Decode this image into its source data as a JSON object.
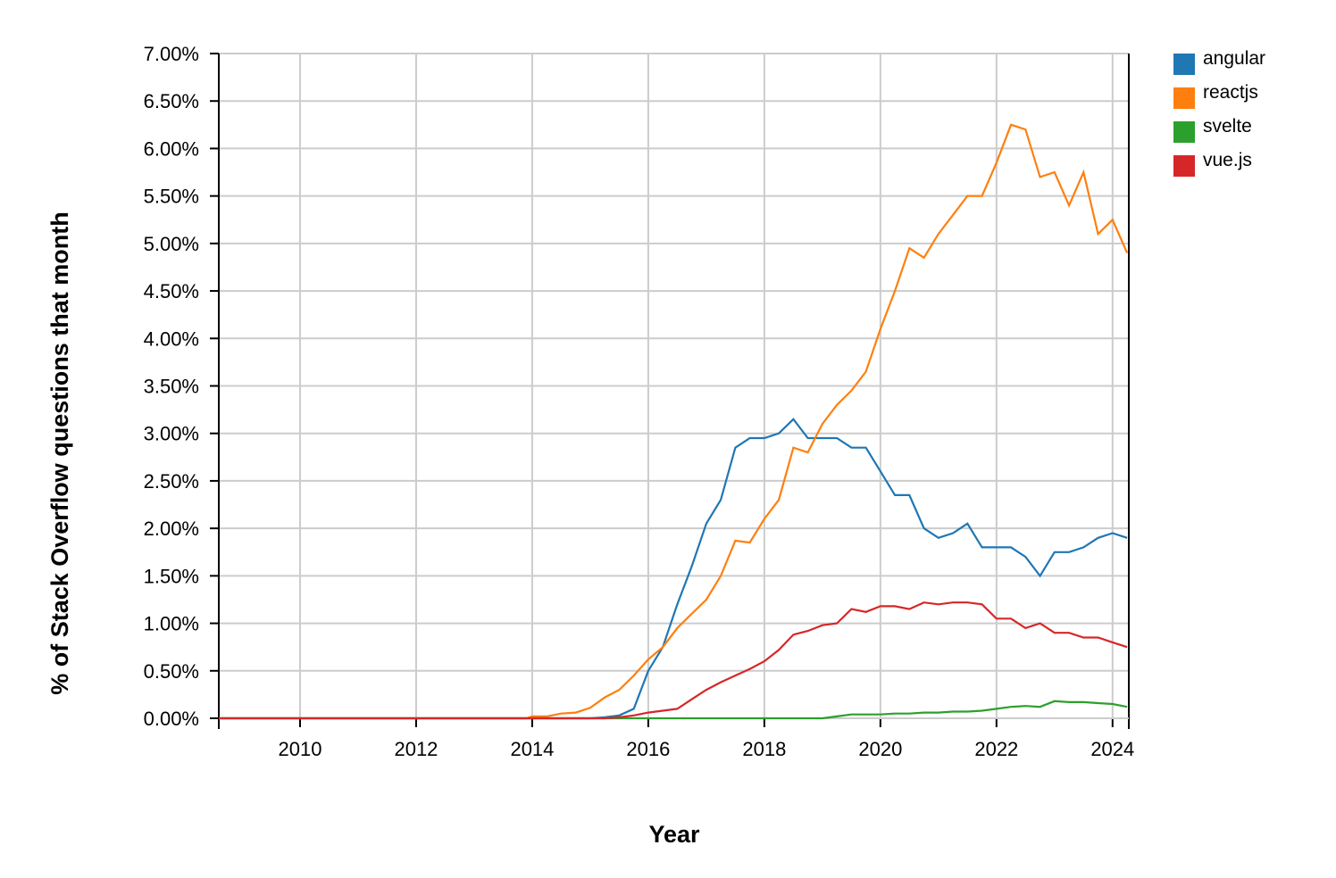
{
  "chart_data": {
    "type": "line",
    "xlabel": "Year",
    "ylabel": "% of Stack Overflow questions that month",
    "x": [
      2008.6,
      2013.9,
      2014.0,
      2014.25,
      2014.5,
      2014.75,
      2015.0,
      2015.25,
      2015.5,
      2015.75,
      2016.0,
      2016.25,
      2016.5,
      2016.75,
      2017.0,
      2017.25,
      2017.5,
      2017.75,
      2018.0,
      2018.25,
      2018.5,
      2018.75,
      2019.0,
      2019.25,
      2019.5,
      2019.75,
      2020.0,
      2020.25,
      2020.5,
      2020.75,
      2021.0,
      2021.25,
      2021.5,
      2021.75,
      2022.0,
      2022.25,
      2022.5,
      2022.75,
      2023.0,
      2023.25,
      2023.5,
      2023.75,
      2024.0,
      2024.25
    ],
    "series": [
      {
        "name": "angular",
        "color": "#1f77b4",
        "values": [
          0,
          0,
          0,
          0,
          0,
          0,
          0,
          0.01,
          0.03,
          0.1,
          0.5,
          0.75,
          1.2,
          1.6,
          2.05,
          2.3,
          2.85,
          2.95,
          2.95,
          3.0,
          3.15,
          2.95,
          2.95,
          2.95,
          2.85,
          2.85,
          2.6,
          2.35,
          2.35,
          2.0,
          1.9,
          1.95,
          2.05,
          1.8,
          1.8,
          1.8,
          1.7,
          1.5,
          1.75,
          1.75,
          1.8,
          1.9,
          1.95,
          1.9
        ]
      },
      {
        "name": "reactjs",
        "color": "#ff7f0e",
        "values": [
          0,
          0,
          0.02,
          0.02,
          0.05,
          0.06,
          0.11,
          0.22,
          0.3,
          0.45,
          0.62,
          0.75,
          0.95,
          1.1,
          1.25,
          1.5,
          1.87,
          1.85,
          2.1,
          2.3,
          2.85,
          2.8,
          3.1,
          3.3,
          3.45,
          3.65,
          4.1,
          4.5,
          4.95,
          4.85,
          5.1,
          5.3,
          5.5,
          5.5,
          5.85,
          6.25,
          6.2,
          5.7,
          5.75,
          5.4,
          5.75,
          5.1,
          5.25,
          4.9
        ]
      },
      {
        "name": "svelte",
        "color": "#2ca02c",
        "values": [
          0,
          0,
          0,
          0,
          0,
          0,
          0,
          0,
          0,
          0,
          0,
          0,
          0,
          0,
          0,
          0,
          0,
          0,
          0,
          0,
          0,
          0,
          0,
          0.02,
          0.04,
          0.04,
          0.04,
          0.05,
          0.05,
          0.06,
          0.06,
          0.07,
          0.07,
          0.08,
          0.1,
          0.12,
          0.13,
          0.12,
          0.18,
          0.17,
          0.17,
          0.16,
          0.15,
          0.12
        ]
      },
      {
        "name": "vue.js",
        "color": "#d62728",
        "values": [
          0,
          0,
          0,
          0,
          0,
          0,
          0,
          0,
          0.01,
          0.03,
          0.06,
          0.08,
          0.1,
          0.2,
          0.3,
          0.38,
          0.45,
          0.52,
          0.6,
          0.72,
          0.88,
          0.92,
          0.98,
          1.0,
          1.15,
          1.12,
          1.18,
          1.18,
          1.15,
          1.22,
          1.2,
          1.22,
          1.22,
          1.2,
          1.05,
          1.05,
          0.95,
          1.0,
          0.9,
          0.9,
          0.85,
          0.85,
          0.8,
          0.75
        ]
      }
    ],
    "xlim": [
      2008.6,
      2024.28
    ],
    "xticks": [
      2010,
      2012,
      2014,
      2016,
      2018,
      2020,
      2022,
      2024
    ],
    "ylim": [
      0,
      7
    ],
    "yticks": [
      {
        "value": 0,
        "label": "0.00%"
      },
      {
        "value": 0.5,
        "label": "0.50%"
      },
      {
        "value": 1,
        "label": "1.00%"
      },
      {
        "value": 1.5,
        "label": "1.50%"
      },
      {
        "value": 2,
        "label": "2.00%"
      },
      {
        "value": 2.5,
        "label": "2.50%"
      },
      {
        "value": 3,
        "label": "3.00%"
      },
      {
        "value": 3.5,
        "label": "3.50%"
      },
      {
        "value": 4,
        "label": "4.00%"
      },
      {
        "value": 4.5,
        "label": "4.50%"
      },
      {
        "value": 5,
        "label": "5.00%"
      },
      {
        "value": 5.5,
        "label": "5.50%"
      },
      {
        "value": 6,
        "label": "6.00%"
      },
      {
        "value": 6.5,
        "label": "6.50%"
      },
      {
        "value": 7,
        "label": "7.00%"
      }
    ],
    "grid": true,
    "legend": "upper right outside"
  }
}
